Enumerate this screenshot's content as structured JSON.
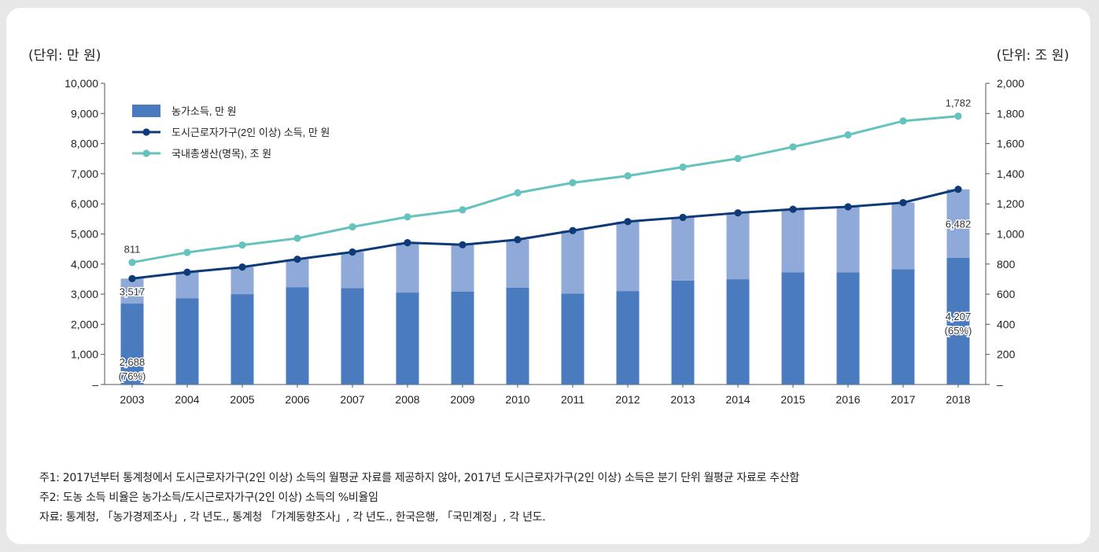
{
  "units": {
    "left": "(단위: 만 원)",
    "right": "(단위: 조 원)"
  },
  "colors": {
    "farm_bottom": "#4a7bbf",
    "farm_top": "#8fa9d8",
    "urban_line": "#0f3a78",
    "gdp_line": "#66c2bd"
  },
  "chart_data": {
    "type": "bar",
    "categories": [
      "2003",
      "2004",
      "2005",
      "2006",
      "2007",
      "2008",
      "2009",
      "2010",
      "2011",
      "2012",
      "2013",
      "2014",
      "2015",
      "2016",
      "2017",
      "2018"
    ],
    "series": [
      {
        "name": "농가소득, 만 원",
        "kind": "bar",
        "axis": "left",
        "values": [
          2688,
          2860,
          3000,
          3230,
          3197,
          3052,
          3081,
          3212,
          3015,
          3103,
          3452,
          3495,
          3722,
          3720,
          3824,
          4207
        ]
      },
      {
        "name": "도시근로자가구(2인 이상) 소득, 만 원",
        "kind": "line",
        "axis": "left",
        "values": [
          3517,
          3730,
          3900,
          4160,
          4400,
          4710,
          4640,
          4810,
          5110,
          5410,
          5550,
          5700,
          5820,
          5900,
          6040,
          6482
        ]
      },
      {
        "name": "국내총생산(명목), 조 원",
        "kind": "line",
        "axis": "right",
        "values": [
          811,
          877,
          926,
          971,
          1047,
          1113,
          1160,
          1273,
          1340,
          1386,
          1444,
          1501,
          1578,
          1658,
          1750,
          1782
        ]
      }
    ],
    "y_left": {
      "min": 0,
      "max": 10000,
      "ticks": [
        "–",
        "1,000",
        "2,000",
        "3,000",
        "4,000",
        "5,000",
        "6,000",
        "7,000",
        "8,000",
        "9,000",
        "10,000"
      ]
    },
    "y_right": {
      "min": 0,
      "max": 2000,
      "ticks": [
        "–",
        "200",
        "400",
        "600",
        "800",
        "1,000",
        "1,200",
        "1,400",
        "1,600",
        "1,800",
        "2,000"
      ]
    },
    "annotations": [
      {
        "text": "811",
        "series": 2,
        "index": 0,
        "pos": "above"
      },
      {
        "text": "3,517",
        "series": 1,
        "index": 0,
        "pos": "below"
      },
      {
        "text": "2,688",
        "series": 0,
        "index": 0,
        "pos": "inner1"
      },
      {
        "text": "(76%)",
        "series": 0,
        "index": 0,
        "pos": "inner2"
      },
      {
        "text": "1,782",
        "series": 2,
        "index": 15,
        "pos": "above"
      },
      {
        "text": "6,482",
        "series": 1,
        "index": 15,
        "pos": "mid"
      },
      {
        "text": "4,207",
        "series": 0,
        "index": 15,
        "pos": "inner1"
      },
      {
        "text": "(65%)",
        "series": 0,
        "index": 15,
        "pos": "inner2"
      }
    ],
    "legend": "top-left"
  },
  "notes": [
    "주1: 2017년부터 통계청에서 도시근로자가구(2인 이상) 소득의 월평균 자료를 제공하지 않아, 2017년 도시근로자가구(2인 이상) 소득은 분기 단위 월평균 자료로 추산함",
    "주2: 도농 소득 비율은 농가소득/도시근로자가구(2인 이상) 소득의 %비율임",
    "자료: 통계청, 「농가경제조사」, 각 년도., 통계청 「가계동향조사」, 각 년도., 한국은행, 「국민계정」, 각 년도."
  ]
}
